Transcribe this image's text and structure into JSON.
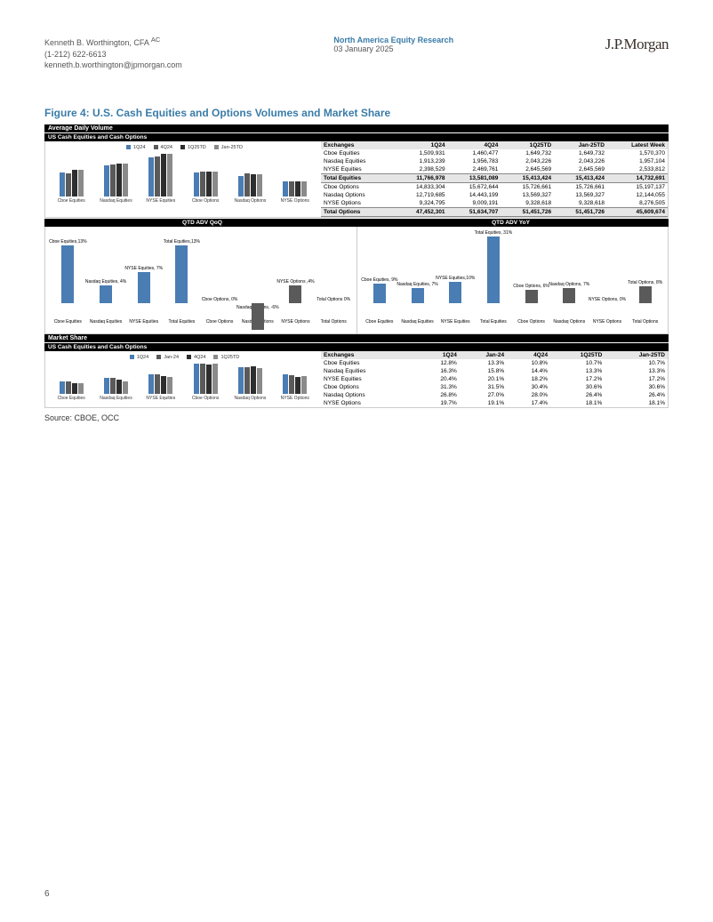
{
  "header": {
    "author": "Kenneth B. Worthington, CFA",
    "author_suffix": "AC",
    "phone": "(1-212) 622-6613",
    "email": "kenneth.b.worthington@jpmorgan.com",
    "center_title": "North America Equity Research",
    "date": "03 January 2025",
    "logo": "J.P.Morgan"
  },
  "figure_title": "Figure 4: U.S. Cash Equities and Options Volumes and Market Share",
  "section_adv": "Average Daily Volume",
  "section_sub1": "US Cash Equities and Cash Options",
  "section_ms": "Market Share",
  "qoq_title": "QTD ADV QoQ",
  "yoy_title": "QTD ADV YoY",
  "legend_periods": [
    "1Q24",
    "4Q24",
    "1Q25TD",
    "Jan-25TD"
  ],
  "legend_periods_ms": [
    "1Q24",
    "Jan-24",
    "4Q24",
    "1Q25TD"
  ],
  "colors": {
    "c1": "#4a7db3",
    "c2": "#5a5a5a",
    "c3": "#2e2e2e",
    "c4": "#8a8a8a"
  },
  "adv_categories": [
    "Cboe Equities",
    "Nasdaq Equities",
    "NYSE Equities",
    "Cboe Options",
    "Nasdaq Options",
    "NYSE Options"
  ],
  "adv_table": {
    "head": [
      "Exchanges",
      "1Q24",
      "4Q24",
      "1Q25TD",
      "Jan-25TD",
      "Latest Week"
    ],
    "rows": [
      [
        "Cboe Equities",
        "1,509,931",
        "1,460,477",
        "1,649,732",
        "1,649,732",
        "1,570,370"
      ],
      [
        "Nasdaq Equities",
        "1,913,239",
        "1,956,783",
        "2,043,226",
        "2,043,226",
        "1,957,104"
      ],
      [
        "NYSE Equities",
        "2,398,529",
        "2,469,761",
        "2,645,569",
        "2,645,569",
        "2,533,812"
      ]
    ],
    "total_eq": [
      "Total Equities",
      "11,766,978",
      "13,581,089",
      "15,413,424",
      "15,413,424",
      "14,732,691"
    ],
    "rows2": [
      [
        "Cboe Options",
        "14,833,304",
        "15,672,644",
        "15,726,661",
        "15,726,661",
        "15,197,137"
      ],
      [
        "Nasdaq Options",
        "12,719,685",
        "14,443,199",
        "13,569,327",
        "13,569,327",
        "12,144,055"
      ],
      [
        "NYSE Options",
        "9,324,795",
        "9,009,191",
        "9,328,618",
        "9,328,618",
        "8,276,505"
      ]
    ],
    "total_opt": [
      "Total Options",
      "47,452,301",
      "51,634,707",
      "51,451,726",
      "51,451,726",
      "45,609,674"
    ]
  },
  "qoq": [
    {
      "label": "Cboe Equities,13%",
      "value": 13,
      "color": "#4a7db3"
    },
    {
      "label": "Nasdaq Equities, 4%",
      "value": 4,
      "color": "#4a7db3"
    },
    {
      "label": "NYSE Equities, 7%",
      "value": 7,
      "color": "#4a7db3"
    },
    {
      "label": "Total Equities,13%",
      "value": 13,
      "color": "#4a7db3"
    },
    {
      "label": "Cboe Options, 0%",
      "value": 0,
      "color": "#5a5a5a"
    },
    {
      "label": "Nasdaq Options, -6%",
      "value": -6,
      "color": "#5a5a5a"
    },
    {
      "label": "NYSE Options ,4%",
      "value": 4,
      "color": "#5a5a5a"
    },
    {
      "label": "Total Options 0%",
      "value": 0,
      "color": "#5a5a5a"
    }
  ],
  "yoy": [
    {
      "label": "Cboe Equities, 9%",
      "value": 9,
      "color": "#4a7db3"
    },
    {
      "label": "Nasdaq Equities, 7%",
      "value": 7,
      "color": "#4a7db3"
    },
    {
      "label": "NYSE Equities,10%",
      "value": 10,
      "color": "#4a7db3"
    },
    {
      "label": "Total Equities, 31%",
      "value": 31,
      "color": "#4a7db3"
    },
    {
      "label": "Cboe Options, 6%",
      "value": 6,
      "color": "#5a5a5a"
    },
    {
      "label": "Nasdaq Options, 7%",
      "value": 7,
      "color": "#5a5a5a"
    },
    {
      "label": "NYSE Options, 0%",
      "value": 0,
      "color": "#5a5a5a"
    },
    {
      "label": "Total Options, 8%",
      "value": 8,
      "color": "#5a5a5a"
    }
  ],
  "ms_table": {
    "head": [
      "Exchanges",
      "1Q24",
      "Jan-24",
      "4Q24",
      "1Q25TD",
      "Jan-25TD"
    ],
    "rows": [
      [
        "Cboe Equities",
        "12.8%",
        "13.3%",
        "10.8%",
        "10.7%",
        "10.7%"
      ],
      [
        "Nasdaq Equities",
        "16.3%",
        "15.8%",
        "14.4%",
        "13.3%",
        "13.3%"
      ],
      [
        "NYSE Equities",
        "20.4%",
        "20.1%",
        "18.2%",
        "17.2%",
        "17.2%"
      ],
      [
        "Cboe Options",
        "31.3%",
        "31.5%",
        "30.4%",
        "30.6%",
        "30.6%"
      ],
      [
        "Nasdaq Options",
        "26.8%",
        "27.0%",
        "28.0%",
        "26.4%",
        "26.4%"
      ],
      [
        "NYSE Options",
        "19.7%",
        "19.1%",
        "17.4%",
        "18.1%",
        "18.1%"
      ]
    ]
  },
  "adv_bars": [
    [
      30,
      28,
      33,
      33
    ],
    [
      38,
      39,
      41,
      41
    ],
    [
      48,
      49,
      53,
      53
    ],
    [
      30,
      31,
      31,
      31
    ],
    [
      25,
      29,
      27,
      27
    ],
    [
      19,
      18,
      19,
      19
    ]
  ],
  "ms_bars": [
    [
      13,
      13,
      11,
      11
    ],
    [
      16,
      16,
      14,
      13
    ],
    [
      20,
      20,
      18,
      17
    ],
    [
      31,
      31,
      30,
      31
    ],
    [
      27,
      27,
      28,
      26
    ],
    [
      20,
      19,
      17,
      18
    ]
  ],
  "source": "Source: CBOE, OCC",
  "page": "6"
}
